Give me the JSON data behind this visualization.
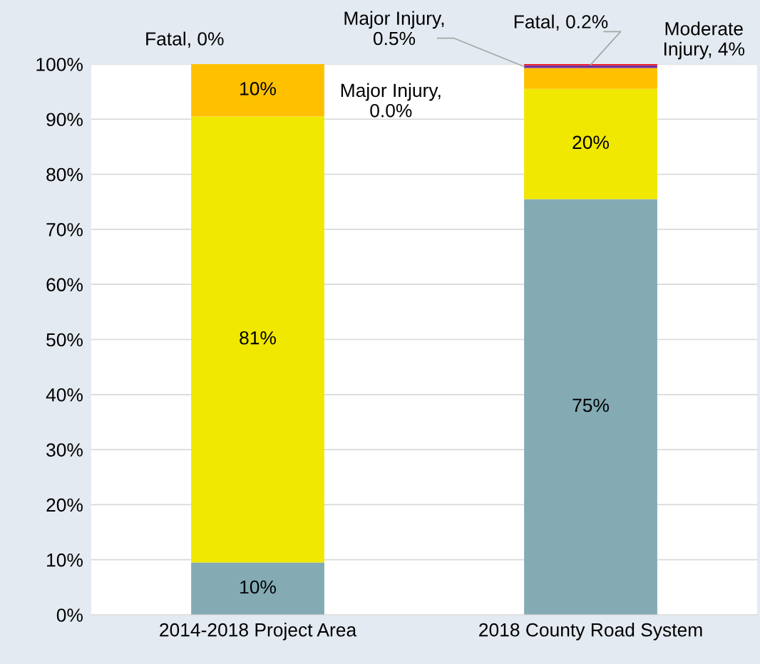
{
  "chart_data": {
    "type": "bar",
    "stacked": true,
    "categories": [
      "2014-2018 Project Area",
      "2018 County Road System"
    ],
    "series": [
      {
        "color": "#84abb4",
        "values": [
          9.5,
          75.5
        ],
        "value_labels": [
          "10%",
          "75%"
        ]
      },
      {
        "color": "#f0e800",
        "values": [
          81,
          20
        ],
        "value_labels": [
          "81%",
          "20%"
        ]
      },
      {
        "color": "#ffc000",
        "values": [
          9.5,
          3.8
        ],
        "value_labels": [
          "10%",
          null
        ]
      },
      {
        "color": "#7030a0",
        "values": [
          0,
          0.5
        ],
        "value_labels": [
          null,
          "Major Injury,\n0.5%"
        ]
      },
      {
        "color": "#ff0000",
        "values": [
          0,
          0.2
        ],
        "value_labels": [
          null,
          "Fatal, 0.2%"
        ]
      }
    ],
    "annotations": [
      "Fatal, 0%",
      "Major Injury,\n0.0%",
      "Moderate\nInjury, 4%"
    ],
    "ylim": [
      0,
      100
    ],
    "yticks": [
      {
        "value": 0,
        "label": "0%"
      },
      {
        "value": 10,
        "label": "10%"
      },
      {
        "value": 20,
        "label": "20%"
      },
      {
        "value": 30,
        "label": "30%"
      },
      {
        "value": 40,
        "label": "40%"
      },
      {
        "value": 50,
        "label": "50%"
      },
      {
        "value": 60,
        "label": "60%"
      },
      {
        "value": 70,
        "label": "70%"
      },
      {
        "value": 80,
        "label": "80%"
      },
      {
        "value": 90,
        "label": "90%"
      },
      {
        "value": 100,
        "label": "100%"
      }
    ],
    "grid": "y",
    "legend": false
  }
}
